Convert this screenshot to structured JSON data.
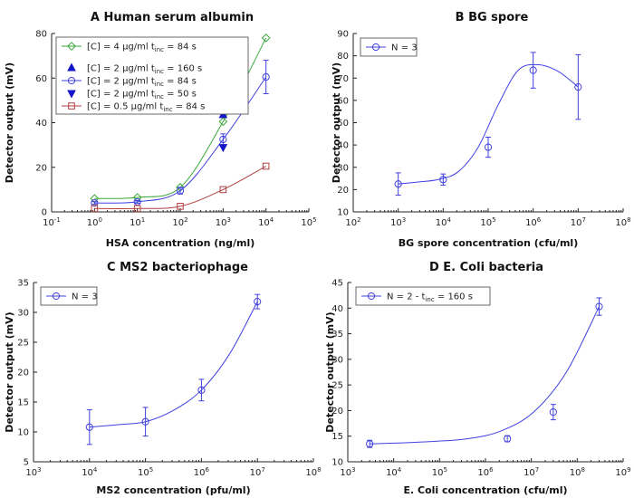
{
  "chart_data": [
    {
      "panel": "A",
      "type": "scatter",
      "title": "Human serum albumin",
      "xlabel": "HSA concentration (ng/ml)",
      "ylabel": "Detector output (mV)",
      "xscale": "log",
      "xlim_exp": [
        -1,
        5
      ],
      "ylim": [
        0,
        80
      ],
      "yticks": [
        0,
        20,
        40,
        60,
        80
      ],
      "legend_position": "top-left",
      "series": [
        {
          "name": "[C] = 4 μg/ml t_inc = 84 s",
          "legend": [
            "[C] = 4 μg/ml t",
            "inc",
            " = 84 s"
          ],
          "color": "#3aa83a",
          "marker": "diamond",
          "x_exp": [
            0,
            1,
            2,
            3,
            4
          ],
          "values": [
            6,
            6.5,
            11,
            40.5,
            78
          ]
        },
        {
          "name": "[C] = 2 μg/ml t_inc = 160 s",
          "legend": [
            "[C] = 2 μg/ml t",
            "inc",
            " = 160 s"
          ],
          "color": "#1414c8",
          "marker": "triangle-up",
          "line": false,
          "x_exp": [
            3
          ],
          "values": [
            43.5
          ]
        },
        {
          "name": "[C] = 2 μg/ml t_inc = 84 s",
          "legend": [
            "[C] = 2 μg/ml t",
            "inc",
            " = 84 s"
          ],
          "color": "#4040e0",
          "marker": "circle",
          "x_exp": [
            0,
            1,
            2,
            3,
            4
          ],
          "values": [
            4,
            4.5,
            9.5,
            32.5,
            60.5
          ],
          "errors": [
            0.6,
            0.6,
            1.5,
            2.5,
            7.5
          ]
        },
        {
          "name": "[C] = 2 μg/ml t_inc = 50 s",
          "legend": [
            "[C] = 2 μg/ml t",
            "inc",
            " = 50 s"
          ],
          "color": "#1414c8",
          "marker": "triangle-down",
          "line": false,
          "x_exp": [
            3
          ],
          "values": [
            29
          ]
        },
        {
          "name": "[C] = 0.5 μg/ml t_inc = 84 s",
          "legend": [
            "[C] = 0.5 μg/ml t",
            "inc",
            " = 84 s"
          ],
          "color": "#b04040",
          "marker": "square",
          "x_exp": [
            0,
            1,
            2,
            3,
            4
          ],
          "values": [
            1.5,
            1.5,
            2.5,
            10,
            20.5
          ]
        }
      ]
    },
    {
      "panel": "B",
      "type": "scatter",
      "title": "BG spore",
      "xlabel": "BG spore concentration (cfu/ml)",
      "ylabel": "Detector output (mV)",
      "xscale": "log",
      "xlim_exp": [
        2,
        8
      ],
      "ylim": [
        10,
        90
      ],
      "yticks": [
        10,
        20,
        30,
        40,
        50,
        60,
        70,
        80,
        90
      ],
      "legend_position": "top-left",
      "series": [
        {
          "name": "N = 3",
          "legend": [
            "N = 3"
          ],
          "color": "#4040e0",
          "marker": "circle",
          "x_exp": [
            3,
            4,
            5,
            6,
            7
          ],
          "values": [
            22.5,
            24.5,
            39,
            73.5,
            66
          ],
          "errors": [
            5,
            2.5,
            4.5,
            8,
            14.5
          ],
          "curve_y": [
            22.5,
            23.4,
            24.5,
            28,
            39,
            58,
            73.5,
            76,
            73,
            66
          ]
        }
      ]
    },
    {
      "panel": "C",
      "type": "scatter",
      "title": "MS2 bacteriophage",
      "xlabel": "MS2 concentration (pfu/ml)",
      "ylabel": "Detector output (mV)",
      "xscale": "log",
      "xlim_exp": [
        3,
        8
      ],
      "ylim": [
        5,
        35
      ],
      "yticks": [
        5,
        10,
        15,
        20,
        25,
        30,
        35
      ],
      "legend_position": "top-left",
      "series": [
        {
          "name": "N = 3",
          "legend": [
            "N = 3"
          ],
          "color": "#4040e0",
          "marker": "circle",
          "x_exp": [
            4,
            5,
            6,
            7
          ],
          "values": [
            10.8,
            11.7,
            17,
            31.8
          ],
          "errors": [
            2.9,
            2.4,
            1.8,
            1.2
          ],
          "curve_y": [
            10.8,
            11.2,
            11.7,
            13.6,
            17,
            23,
            31.8
          ]
        }
      ]
    },
    {
      "panel": "D",
      "type": "scatter",
      "title": "E. Coli bacteria",
      "xlabel": "E. Coli concentration (cfu/ml)",
      "ylabel": "Detector output (mV)",
      "xscale": "log",
      "xlim_exp": [
        3,
        9
      ],
      "ylim": [
        10,
        45
      ],
      "yticks": [
        10,
        15,
        20,
        25,
        30,
        35,
        40,
        45
      ],
      "legend_position": "top-left",
      "series": [
        {
          "name": "N = 2 - t_inc = 160 s",
          "legend": [
            "N = 2 - t",
            "inc",
            " = 160 s"
          ],
          "color": "#4040e0",
          "marker": "circle",
          "x_exp": [
            3.477,
            6.477,
            7.477,
            8.477
          ],
          "values": [
            13.5,
            14.5,
            19.7,
            40.3
          ],
          "errors": [
            0.7,
            0.6,
            1.5,
            1.7
          ],
          "curve_y": [
            13.5,
            13.7,
            14.0,
            14.5,
            16.0,
            19.7,
            27.5,
            40.3
          ]
        }
      ]
    }
  ]
}
